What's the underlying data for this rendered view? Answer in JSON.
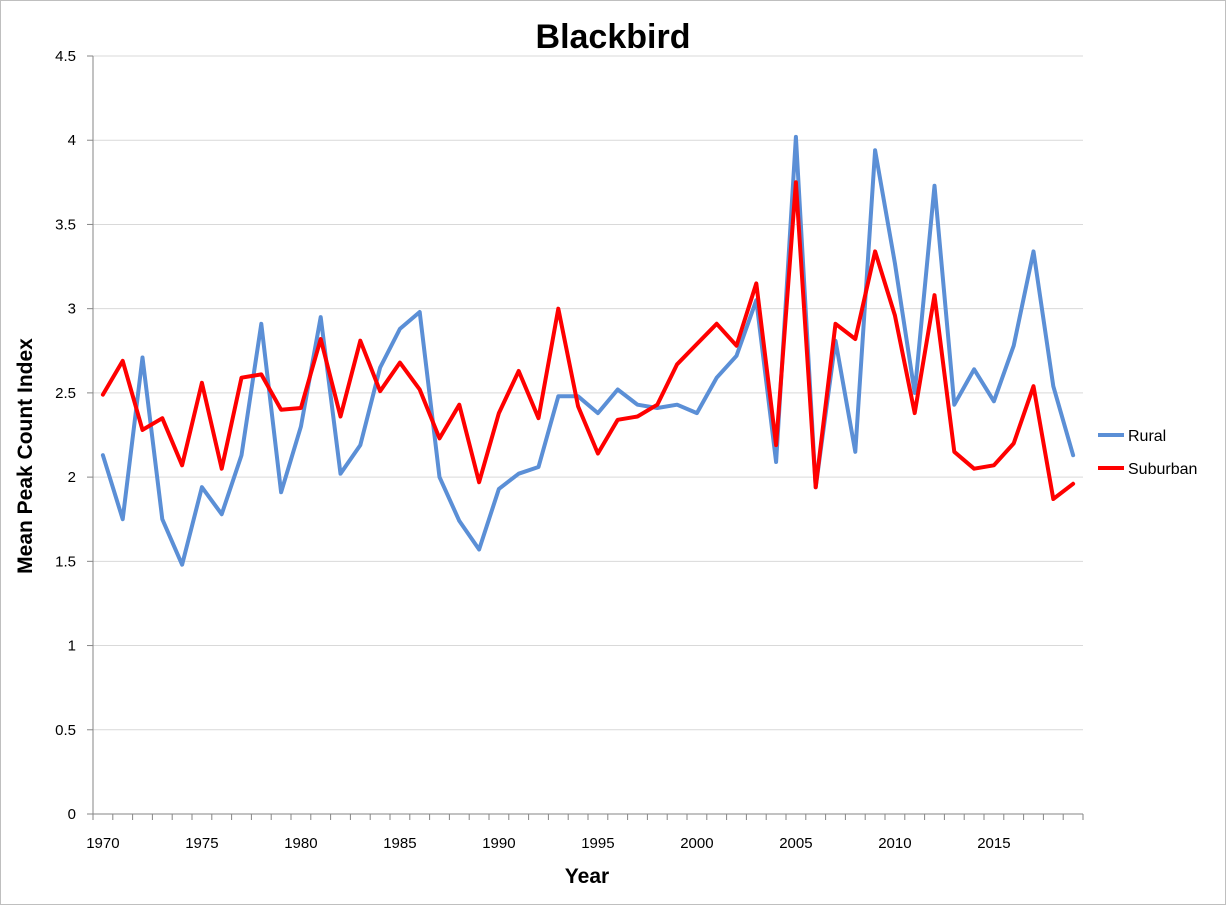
{
  "chart_data": {
    "type": "line",
    "title": "Blackbird",
    "xlabel": "Year",
    "ylabel": "Mean Peak Count Index",
    "ylim": [
      0,
      4.5
    ],
    "yticks": [
      "0",
      "0.5",
      "1",
      "1.5",
      "2",
      "2.5",
      "3",
      "3.5",
      "4",
      "4.5"
    ],
    "xticks": [
      "1970",
      "1975",
      "1980",
      "1985",
      "1990",
      "1995",
      "2000",
      "2005",
      "2010",
      "2015"
    ],
    "grid": true,
    "legend_position": "right",
    "x": [
      1970,
      1971,
      1972,
      1973,
      1974,
      1975,
      1976,
      1977,
      1978,
      1979,
      1980,
      1981,
      1982,
      1983,
      1984,
      1985,
      1986,
      1987,
      1988,
      1989,
      1990,
      1991,
      1992,
      1993,
      1994,
      1995,
      1996,
      1997,
      1998,
      1999,
      2000,
      2001,
      2002,
      2003,
      2004,
      2005,
      2006,
      2007,
      2008,
      2009,
      2010,
      2011,
      2012,
      2013,
      2014,
      2015,
      2016,
      2017,
      2018,
      2019
    ],
    "series": [
      {
        "name": "Rural",
        "color": "#5b8fd6",
        "values": [
          2.13,
          1.75,
          2.71,
          1.75,
          1.48,
          1.94,
          1.78,
          2.13,
          2.91,
          1.91,
          2.3,
          2.95,
          2.02,
          2.19,
          2.65,
          2.88,
          2.98,
          2.0,
          1.74,
          1.57,
          1.93,
          2.02,
          2.06,
          2.48,
          2.48,
          2.38,
          2.52,
          2.43,
          2.41,
          2.43,
          2.38,
          2.59,
          2.72,
          3.05,
          2.09,
          4.02,
          1.94,
          2.81,
          2.15,
          3.94,
          3.27,
          2.5,
          3.73,
          2.43,
          2.64,
          2.45,
          2.78,
          3.34,
          2.54,
          2.13
        ]
      },
      {
        "name": "Suburban",
        "color": "#ff0000",
        "values": [
          2.49,
          2.69,
          2.28,
          2.35,
          2.07,
          2.56,
          2.05,
          2.59,
          2.61,
          2.4,
          2.41,
          2.82,
          2.36,
          2.81,
          2.51,
          2.68,
          2.52,
          2.23,
          2.43,
          1.97,
          2.38,
          2.63,
          2.35,
          3.0,
          2.42,
          2.14,
          2.34,
          2.36,
          2.43,
          2.67,
          2.79,
          2.91,
          2.78,
          3.15,
          2.19,
          3.75,
          1.94,
          2.91,
          2.82,
          3.34,
          2.96,
          2.38,
          3.08,
          2.15,
          2.05,
          2.07,
          2.2,
          2.54,
          1.87,
          1.96
        ]
      }
    ]
  }
}
